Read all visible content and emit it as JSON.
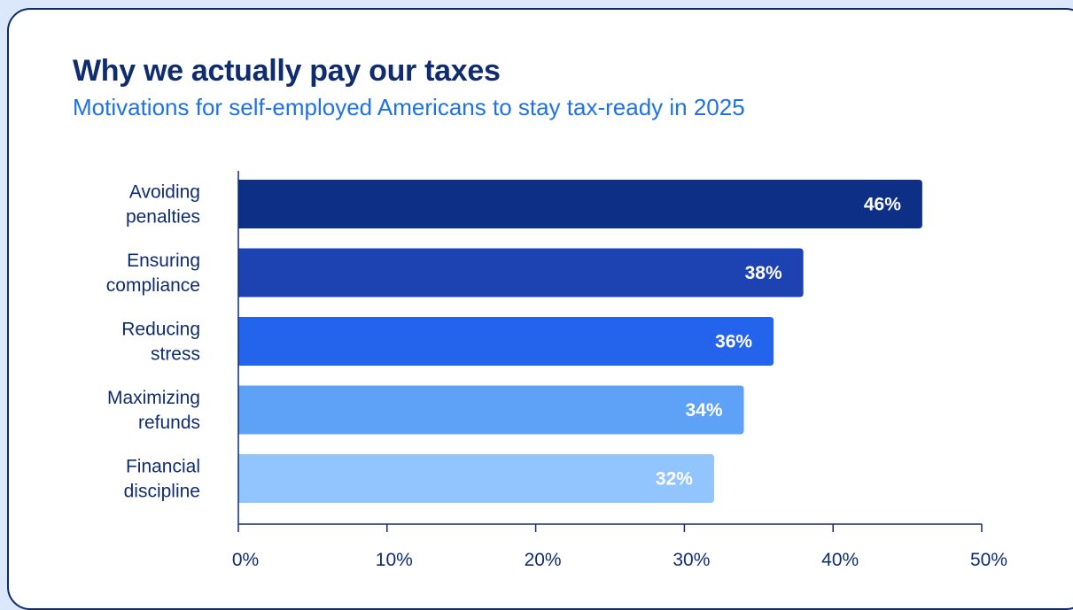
{
  "colors": {
    "card_border": "#0d2a6b",
    "title": "#0f2d6e",
    "subtitle": "#1e73e0",
    "bar_colors": [
      "#0d2f85",
      "#1d43b3",
      "#2463eb",
      "#5ea2f7",
      "#92c5fd"
    ]
  },
  "chart_data": {
    "type": "bar",
    "orientation": "horizontal",
    "title": "Why we actually pay our taxes",
    "subtitle": "Motivations for self-employed Americans to stay tax-ready in 2025",
    "categories": [
      [
        "Avoiding",
        "penalties"
      ],
      [
        "Ensuring",
        "compliance"
      ],
      [
        "Reducing",
        "stress"
      ],
      [
        "Maximizing",
        "refunds"
      ],
      [
        "Financial",
        "discipline"
      ]
    ],
    "values": [
      46,
      38,
      36,
      34,
      32
    ],
    "value_labels": [
      "46%",
      "38%",
      "36%",
      "34%",
      "32%"
    ],
    "xlim": [
      0,
      50
    ],
    "xticks": [
      0,
      10,
      20,
      30,
      40,
      50
    ],
    "xtick_labels": [
      "0%",
      "10%",
      "20%",
      "30%",
      "40%",
      "50%"
    ],
    "xlabel": "",
    "ylabel": "",
    "grid": false,
    "legend": "none"
  }
}
